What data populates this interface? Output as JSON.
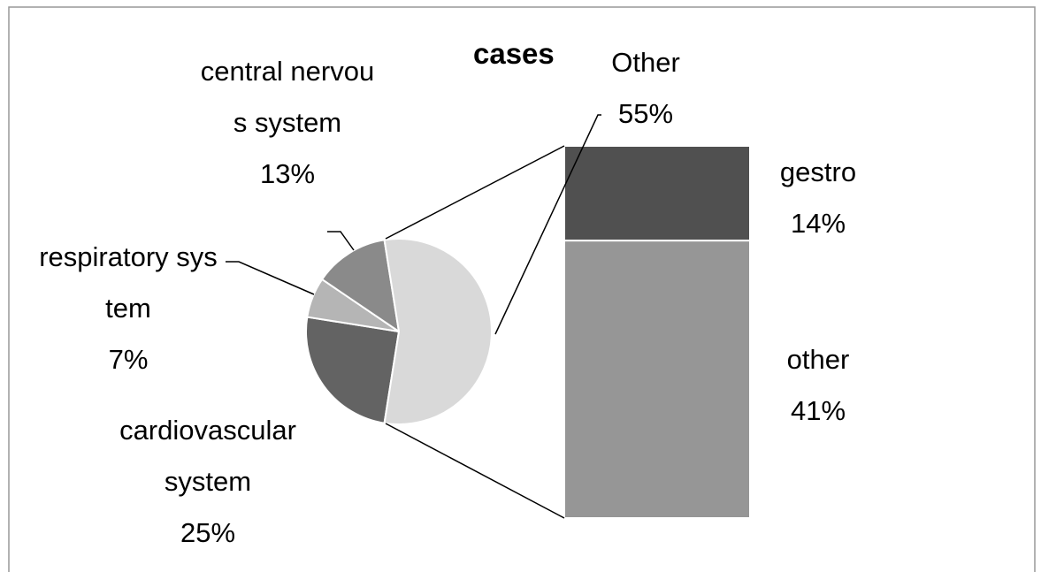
{
  "chart_data": {
    "type": "pie",
    "title": "cases",
    "categories": [
      "cardiovascular system",
      "respiratory system",
      "central nervous system",
      "Other"
    ],
    "values": [
      25,
      7,
      13,
      55
    ],
    "value_labels": [
      "25%",
      "7%",
      "13%",
      "55%"
    ],
    "colors": [
      "#636363",
      "#b5b5b5",
      "#8a8a8a",
      "#d9d9d9"
    ],
    "breakout": {
      "categories": [
        "gestro",
        "other"
      ],
      "values": [
        14,
        41
      ],
      "value_labels": [
        "14%",
        "41%"
      ],
      "colors": [
        "#505050",
        "#969696"
      ]
    }
  }
}
